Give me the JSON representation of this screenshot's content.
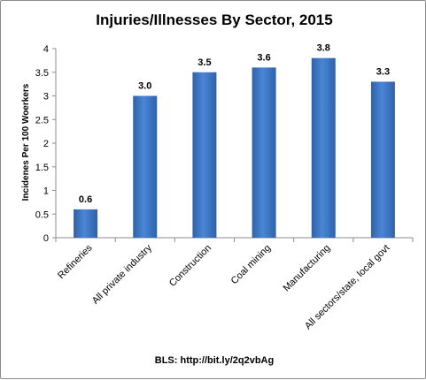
{
  "chart_data": {
    "type": "bar",
    "title": "Injuries/Illnesses  By Sector, 2015",
    "ylabel": "Incidenes Per 100 Woerkers",
    "xlabel": "",
    "categories": [
      "Refineries",
      "All private industry",
      "Construction",
      "Coal mining",
      "Manufacturing",
      "All sectors/state, local govt"
    ],
    "values": [
      0.6,
      3.0,
      3.5,
      3.6,
      3.8,
      3.3
    ],
    "data_labels": [
      "0.6",
      "3.0",
      "3.5",
      "3.6",
      "3.8",
      "3.3"
    ],
    "y_ticks": [
      "0",
      "0.5",
      "1",
      "1.5",
      "2",
      "2.5",
      "3",
      "3.5",
      "4"
    ],
    "ylim": [
      0,
      4
    ],
    "grid": false,
    "legend": "none",
    "bar_color": "#3a74c4",
    "source": "BLS: http://bit.ly/2q2vbAg"
  }
}
